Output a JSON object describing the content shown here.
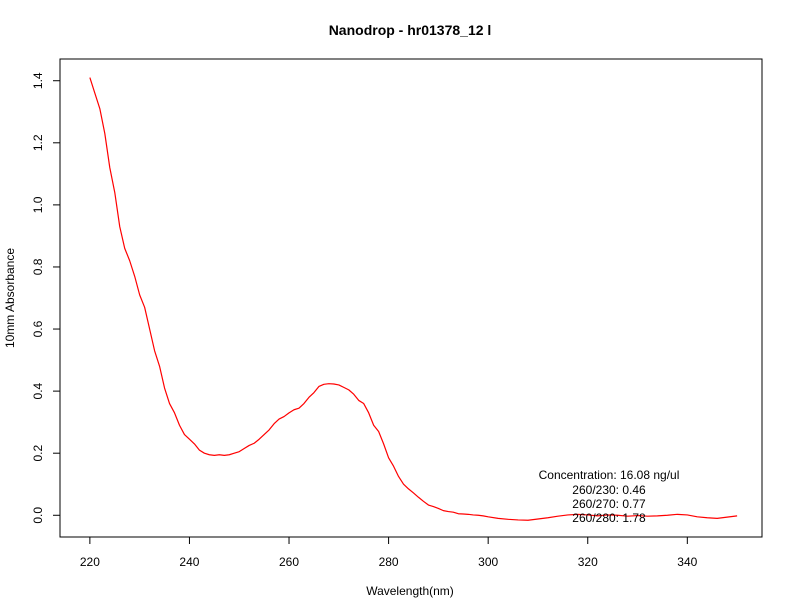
{
  "chart_data": {
    "type": "line",
    "title": "Nanodrop - hr01378_12 l",
    "xlabel": "Wavelength(nm)",
    "ylabel": "10mm Absorbance",
    "xlim": [
      214,
      355
    ],
    "ylim": [
      -0.07,
      1.47
    ],
    "x_ticks": [
      220,
      240,
      260,
      280,
      300,
      320,
      340
    ],
    "y_ticks": [
      0.0,
      0.2,
      0.4,
      0.6,
      0.8,
      1.0,
      1.2,
      1.4
    ],
    "x_tick_labels": [
      "220",
      "240",
      "260",
      "280",
      "300",
      "320",
      "340"
    ],
    "y_tick_labels": [
      "0.0",
      "0.2",
      "0.4",
      "0.6",
      "0.8",
      "1.0",
      "1.2",
      "1.4"
    ],
    "grid": false,
    "legend": null,
    "series": [
      {
        "color": "#ff0000",
        "x": [
          220,
          221,
          222,
          223,
          224,
          225,
          226,
          227,
          228,
          229,
          230,
          231,
          232,
          233,
          234,
          235,
          236,
          237,
          238,
          239,
          240,
          241,
          242,
          243,
          244,
          245,
          246,
          247,
          248,
          249,
          250,
          251,
          252,
          253,
          254,
          255,
          256,
          257,
          258,
          259,
          260,
          261,
          262,
          263,
          264,
          265,
          266,
          267,
          268,
          269,
          270,
          271,
          272,
          273,
          274,
          275,
          276,
          277,
          278,
          279,
          280,
          281,
          282,
          283,
          284,
          285,
          286,
          287,
          288,
          289,
          290,
          291,
          292,
          293,
          294,
          295,
          296,
          297,
          298,
          299,
          300,
          302,
          304,
          306,
          308,
          310,
          312,
          314,
          316,
          318,
          320,
          322,
          324,
          326,
          328,
          330,
          332,
          334,
          336,
          338,
          340,
          342,
          344,
          346,
          348,
          350
        ],
        "y": [
          1.41,
          1.36,
          1.31,
          1.23,
          1.12,
          1.04,
          0.93,
          0.86,
          0.82,
          0.77,
          0.71,
          0.67,
          0.6,
          0.53,
          0.48,
          0.41,
          0.36,
          0.33,
          0.29,
          0.26,
          0.245,
          0.23,
          0.21,
          0.2,
          0.195,
          0.193,
          0.195,
          0.193,
          0.195,
          0.2,
          0.205,
          0.215,
          0.225,
          0.232,
          0.245,
          0.26,
          0.275,
          0.295,
          0.31,
          0.318,
          0.33,
          0.34,
          0.345,
          0.36,
          0.38,
          0.395,
          0.415,
          0.422,
          0.424,
          0.423,
          0.42,
          0.412,
          0.404,
          0.39,
          0.37,
          0.36,
          0.33,
          0.29,
          0.27,
          0.23,
          0.185,
          0.158,
          0.125,
          0.1,
          0.085,
          0.072,
          0.058,
          0.045,
          0.033,
          0.028,
          0.022,
          0.015,
          0.012,
          0.01,
          0.005,
          0.004,
          0.003,
          0.001,
          0.0,
          -0.002,
          -0.005,
          -0.01,
          -0.013,
          -0.015,
          -0.016,
          -0.012,
          -0.008,
          -0.003,
          0.001,
          0.003,
          0.001,
          -0.002,
          0.001,
          0.0,
          -0.003,
          -0.001,
          -0.003,
          -0.002,
          0.0,
          0.003,
          0.001,
          -0.005,
          -0.008,
          -0.01,
          -0.006,
          -0.002
        ]
      }
    ],
    "annotations": [
      "Concentration: 16.08 ng/ul",
      "260/230: 0.46",
      "260/270: 0.77",
      "260/280: 1.78"
    ]
  }
}
